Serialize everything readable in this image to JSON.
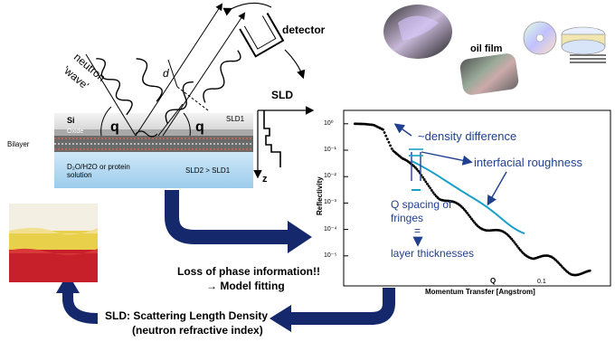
{
  "labels": {
    "neutron": "neutron",
    "wave": "'wave'",
    "d": "d",
    "detector": "detector",
    "oil_film": "oil film",
    "sld": "SLD",
    "si": "Si",
    "oxide": "Oxide",
    "bilayer": "Bilayer",
    "q_left": "q",
    "q_right": "q",
    "sld1_top": "SLD1",
    "solution": "D₂O/H2O or protein\nsolution",
    "sld2": "SLD2 > SLD1",
    "z": "z",
    "loss_phase": "Loss of phase information!!",
    "model_fitting": "→ Model fitting",
    "sld_def1": "SLD: Scattering Length Density",
    "sld_def2": "(neutron refractive index)"
  },
  "chart_labels": {
    "ylabel": "Reflectivity",
    "xlabel": "Momentum Transfer [Angstrom]",
    "q_marker": "Q",
    "x_tick": "0.1",
    "y_ticks": [
      "10⁰",
      "10⁻¹",
      "10⁻²",
      "10⁻³",
      "10⁻⁴",
      "10⁻⁵"
    ]
  },
  "annotations": {
    "density": "~density difference",
    "roughness": "interfacial roughness",
    "spacing1": "Q spacing of",
    "spacing2": "fringes",
    "equals": "=",
    "layer": "layer thicknesses"
  },
  "colors": {
    "arrow_navy": "#14286b",
    "annotation_blue": "#1f3f8f",
    "fit_cyan": "#1aa0c8",
    "water_blue": "#b9dcf3",
    "si_gray": "#dcdcdc"
  },
  "chart_data": {
    "type": "line",
    "series": [
      {
        "values_desc": "measured reflectivity (black dots)",
        "x": [
          0.005,
          0.01,
          0.015,
          0.02,
          0.025,
          0.03,
          0.035,
          0.04,
          0.045,
          0.05,
          0.06,
          0.07,
          0.08,
          0.09,
          0.1,
          0.11,
          0.12,
          0.13
        ],
        "y": [
          1,
          0.98,
          0.9,
          0.6,
          0.1,
          0.05,
          0.02,
          0.01,
          0.005,
          0.002,
          0.0006,
          0.0002,
          8e-05,
          3e-05,
          1e-05,
          6e-06,
          3e-06,
          2e-06
        ]
      }
    ],
    "xlabel": "Momentum Transfer [Angstrom]",
    "ylabel": "Reflectivity",
    "ylog": true,
    "ylim": [
      1e-06,
      2
    ],
    "xlim": [
      0,
      0.14
    ]
  }
}
